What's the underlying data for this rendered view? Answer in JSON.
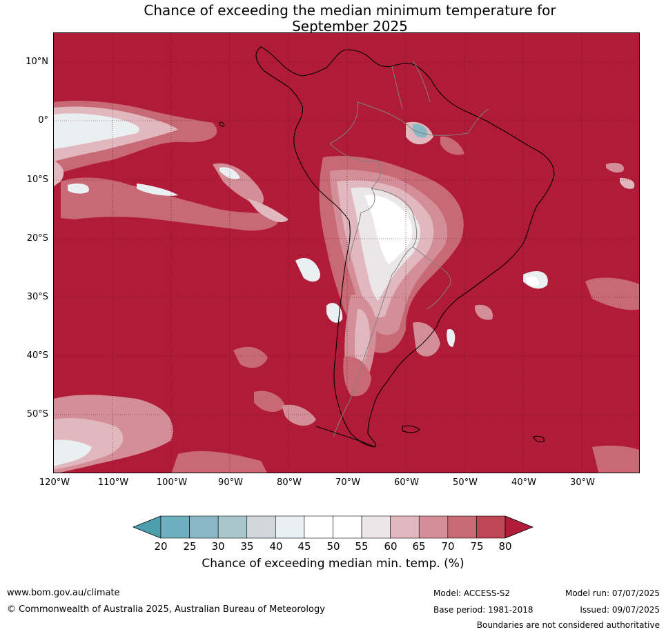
{
  "title_line1": "Chance of exceeding the median minimum temperature for",
  "title_line2": "September 2025",
  "lat_labels": [
    "10°N",
    "0°",
    "10°S",
    "20°S",
    "30°S",
    "40°S",
    "50°S"
  ],
  "lon_labels": [
    "120°W",
    "110°W",
    "100°W",
    "90°W",
    "80°W",
    "70°W",
    "60°W",
    "50°W",
    "40°W",
    "30°W"
  ],
  "colorbar": {
    "ticks": [
      "20",
      "25",
      "30",
      "35",
      "40",
      "45",
      "50",
      "55",
      "60",
      "65",
      "70",
      "75",
      "80"
    ],
    "colors": [
      "#4e9fae",
      "#6daebf",
      "#8ab7c4",
      "#a8c6cc",
      "#d2d8da",
      "#eaf0f2",
      "#ffffff",
      "#ffffff",
      "#ebe7e8",
      "#e2b8bf",
      "#d48e98",
      "#c86a76",
      "#be4655",
      "#b01c37"
    ],
    "title": "Chance of exceeding median min. temp. (%)"
  },
  "map_colors": {
    "background": "#b01c37",
    "coast": "#000000",
    "borders": "#808080"
  },
  "footer": {
    "url": "www.bom.gov.au/climate",
    "copyright": "© Commonwealth of Australia 2025, Australian Bureau of Meteorology",
    "model": "Model: ACCESS-S2",
    "base_period": "Base period: 1981-2018",
    "model_run": "Model run: 07/07/2025",
    "issued": "Issued: 09/07/2025",
    "disclaimer": "Boundaries are not considered authoritative"
  }
}
